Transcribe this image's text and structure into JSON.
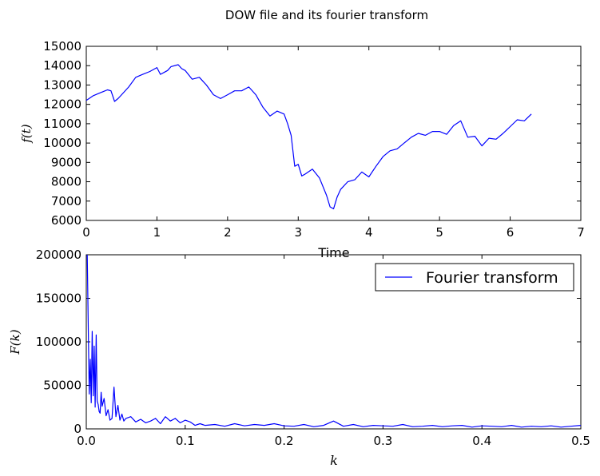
{
  "figure": {
    "title": "DOW file and its fourier transform"
  },
  "chart_data": [
    {
      "type": "line",
      "title": "",
      "xlabel": "Time",
      "ylabel": "f(t)",
      "xlim": [
        0,
        7
      ],
      "ylim": [
        6000,
        15000
      ],
      "xticks": [
        "0",
        "1",
        "2",
        "3",
        "4",
        "5",
        "6",
        "7"
      ],
      "yticks": [
        "6000",
        "7000",
        "8000",
        "9000",
        "10000",
        "11000",
        "12000",
        "13000",
        "14000",
        "15000"
      ],
      "grid": false,
      "series": [
        {
          "color": "#0000ff",
          "x": [
            0,
            0.1,
            0.2,
            0.3,
            0.35,
            0.4,
            0.45,
            0.5,
            0.6,
            0.7,
            0.8,
            0.9,
            1.0,
            1.05,
            1.1,
            1.15,
            1.2,
            1.3,
            1.35,
            1.4,
            1.5,
            1.6,
            1.7,
            1.8,
            1.9,
            2.0,
            2.1,
            2.2,
            2.3,
            2.4,
            2.5,
            2.6,
            2.7,
            2.8,
            2.85,
            2.9,
            2.95,
            3.0,
            3.05,
            3.1,
            3.2,
            3.3,
            3.4,
            3.45,
            3.5,
            3.55,
            3.6,
            3.7,
            3.8,
            3.9,
            4.0,
            4.1,
            4.2,
            4.3,
            4.4,
            4.5,
            4.6,
            4.7,
            4.8,
            4.9,
            5.0,
            5.1,
            5.2,
            5.3,
            5.4,
            5.5,
            5.6,
            5.7,
            5.8,
            5.9,
            6.0,
            6.1,
            6.2,
            6.3
          ],
          "y": [
            12200,
            12450,
            12600,
            12750,
            12700,
            12150,
            12300,
            12500,
            12900,
            13400,
            13550,
            13700,
            13900,
            13550,
            13650,
            13750,
            13950,
            14050,
            13850,
            13750,
            13300,
            13400,
            13000,
            12500,
            12300,
            12500,
            12700,
            12700,
            12900,
            12500,
            11850,
            11400,
            11650,
            11500,
            11000,
            10400,
            8800,
            8900,
            8300,
            8400,
            8650,
            8200,
            7300,
            6700,
            6600,
            7200,
            7600,
            8000,
            8100,
            8500,
            8250,
            8800,
            9300,
            9600,
            9700,
            10000,
            10300,
            10500,
            10400,
            10600,
            10600,
            10450,
            10900,
            11150,
            10300,
            10350,
            9850,
            10250,
            10200,
            10500,
            10850,
            11200,
            11150,
            11500
          ]
        }
      ]
    },
    {
      "type": "line",
      "title": "",
      "xlabel": "k",
      "ylabel": "F(k)",
      "xlim": [
        0,
        0.5
      ],
      "ylim": [
        0,
        200000
      ],
      "xticks": [
        "0.0",
        "0.1",
        "0.2",
        "0.3",
        "0.4",
        "0.5"
      ],
      "yticks": [
        "0",
        "50000",
        "100000",
        "150000",
        "200000"
      ],
      "grid": false,
      "legend": "upper right",
      "series": [
        {
          "name": "Fourier transform",
          "color": "#0000ff",
          "x": [
            0.001,
            0.002,
            0.003,
            0.004,
            0.005,
            0.006,
            0.007,
            0.008,
            0.009,
            0.01,
            0.011,
            0.012,
            0.013,
            0.014,
            0.015,
            0.016,
            0.018,
            0.02,
            0.022,
            0.024,
            0.026,
            0.028,
            0.03,
            0.032,
            0.034,
            0.036,
            0.038,
            0.04,
            0.045,
            0.05,
            0.055,
            0.06,
            0.065,
            0.07,
            0.075,
            0.08,
            0.085,
            0.09,
            0.095,
            0.1,
            0.105,
            0.11,
            0.115,
            0.12,
            0.13,
            0.14,
            0.15,
            0.16,
            0.17,
            0.18,
            0.19,
            0.2,
            0.21,
            0.22,
            0.23,
            0.24,
            0.25,
            0.26,
            0.27,
            0.28,
            0.29,
            0.3,
            0.31,
            0.32,
            0.33,
            0.34,
            0.35,
            0.36,
            0.37,
            0.38,
            0.39,
            0.4,
            0.41,
            0.42,
            0.43,
            0.44,
            0.45,
            0.46,
            0.47,
            0.48,
            0.49,
            0.5
          ],
          "y": [
            200000,
            115000,
            40000,
            80000,
            30000,
            112000,
            38000,
            95000,
            25000,
            108000,
            32000,
            28000,
            20000,
            18000,
            42000,
            26000,
            35000,
            15000,
            22000,
            10000,
            12000,
            48000,
            14000,
            27000,
            10000,
            17000,
            9000,
            12000,
            14000,
            8000,
            11000,
            7000,
            9000,
            12000,
            6000,
            14000,
            9000,
            12000,
            7000,
            10000,
            8000,
            4000,
            6000,
            4000,
            5000,
            3000,
            6000,
            3500,
            5000,
            4000,
            6000,
            3500,
            3000,
            5000,
            2500,
            4000,
            9000,
            3000,
            5000,
            2500,
            4000,
            3500,
            3000,
            5000,
            2500,
            3000,
            4000,
            2500,
            3500,
            4000,
            2000,
            3500,
            3000,
            2500,
            4000,
            2000,
            3000,
            2500,
            3500,
            2000,
            3000,
            4000
          ]
        }
      ]
    }
  ]
}
